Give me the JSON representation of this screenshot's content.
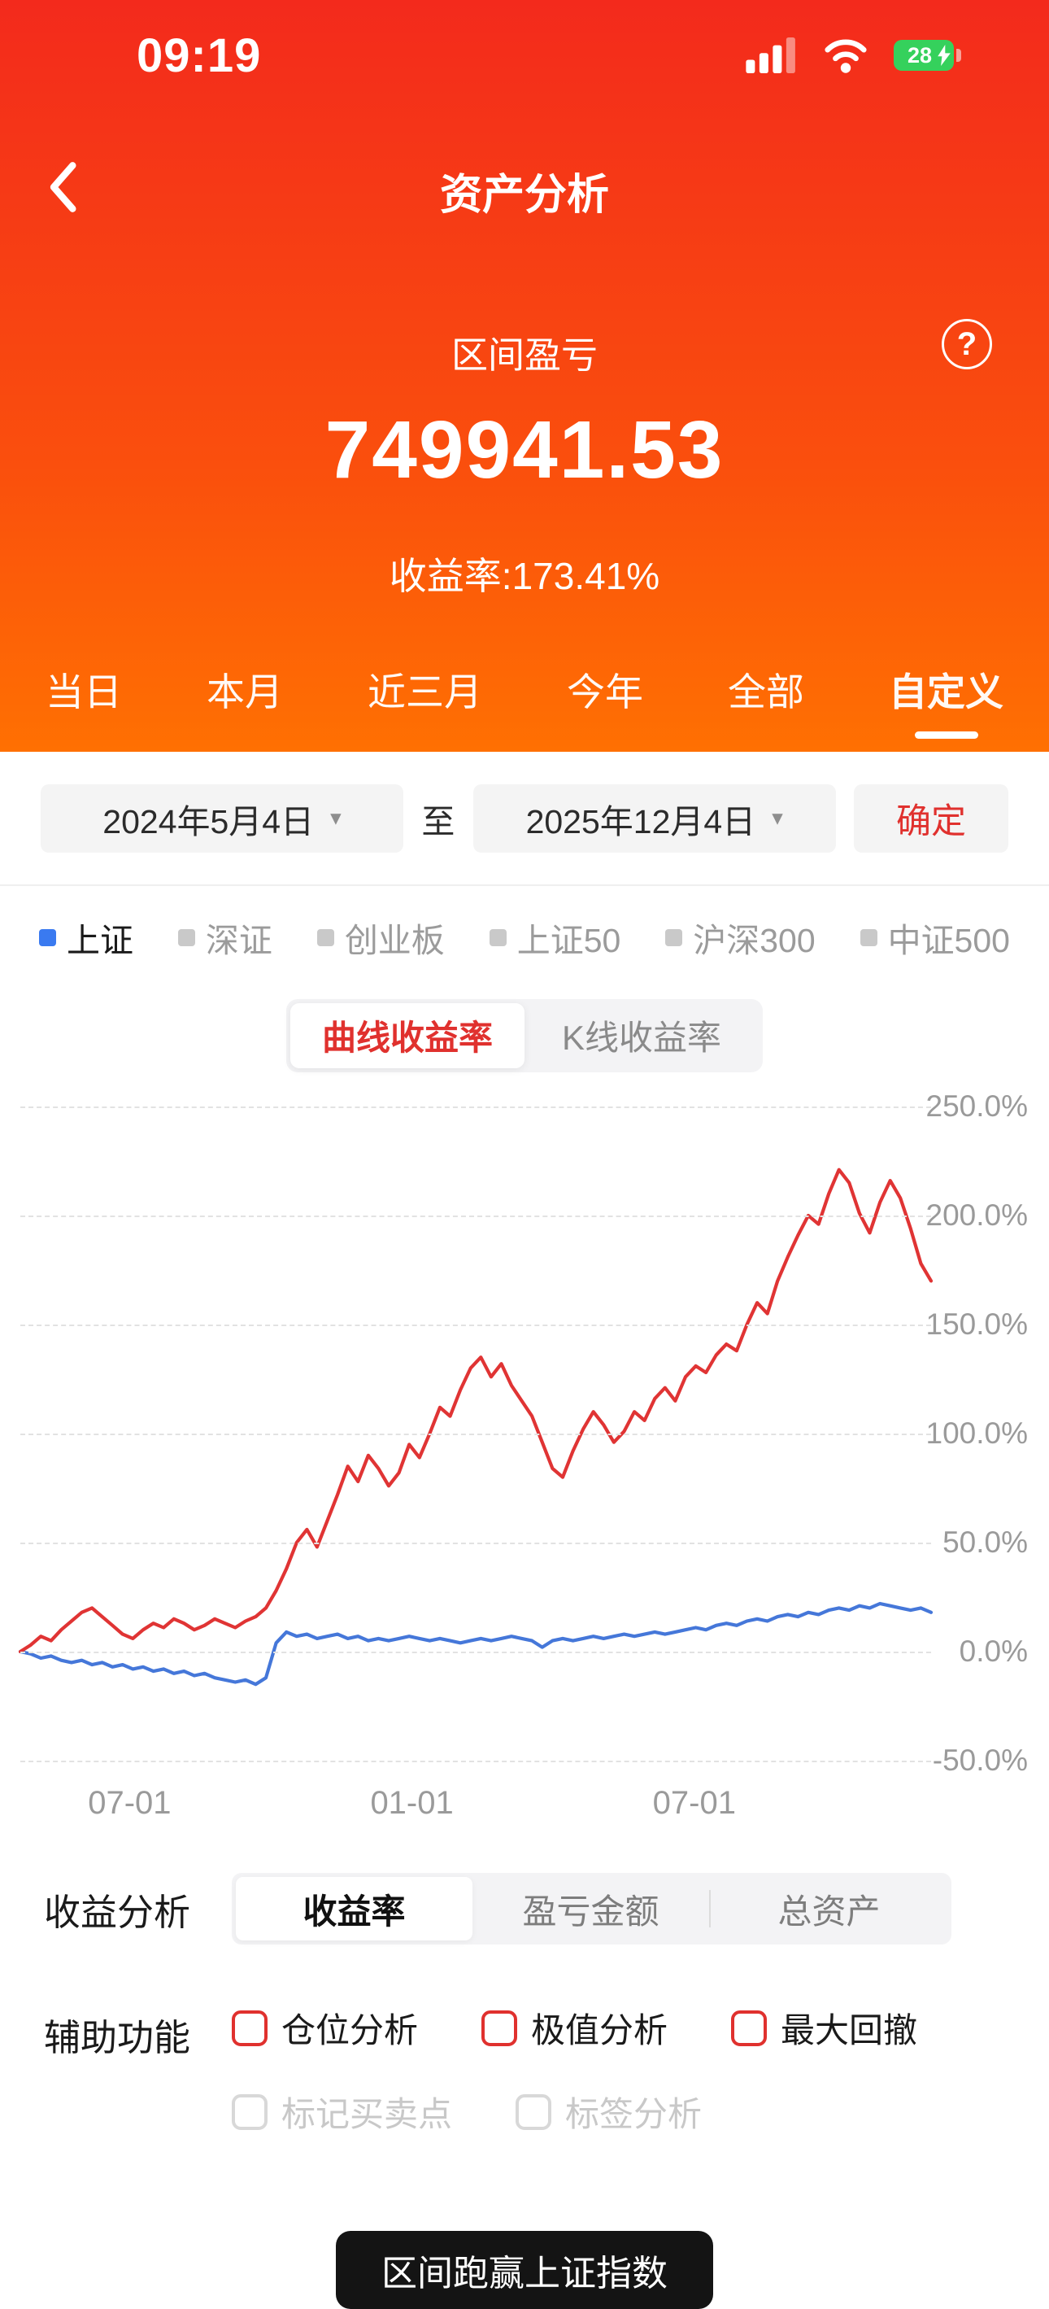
{
  "colors": {
    "header_top": "#f32a1c",
    "header_mid": "#fa4f0d",
    "header_bottom": "#ff7002",
    "accent_red": "#e0312e",
    "legend_blue": "#3a7af0",
    "battery_green": "#35d15c",
    "toast_bg": "#141414"
  },
  "icons": {
    "help": "?",
    "caret": "▾"
  },
  "status_bar": {
    "time": "09:19",
    "battery_percent": "28"
  },
  "header": {
    "title": "资产分析",
    "section_label": "区间盈亏",
    "amount": "749941.53",
    "return_label": "收益率:173.41%",
    "tabs": [
      {
        "label": "当日"
      },
      {
        "label": "本月"
      },
      {
        "label": "近三月"
      },
      {
        "label": "今年"
      },
      {
        "label": "全部"
      },
      {
        "label": "自定义",
        "active": true
      }
    ]
  },
  "date_filter": {
    "start": "2024年5月4日",
    "to_label": "至",
    "end": "2025年12月4日",
    "confirm_label": "确定"
  },
  "legend": [
    {
      "label": "上证",
      "active": true
    },
    {
      "label": "深证",
      "active": false
    },
    {
      "label": "创业板",
      "active": false
    },
    {
      "label": "上证50",
      "active": false
    },
    {
      "label": "沪深300",
      "active": false
    },
    {
      "label": "中证500",
      "active": false
    }
  ],
  "chart_toggle": {
    "options": [
      "曲线收益率",
      "K线收益率"
    ],
    "active_index": 0
  },
  "chart_data": {
    "type": "line",
    "title": "",
    "xlabel": "",
    "ylabel": "",
    "ylim": [
      -50,
      250
    ],
    "grid": "dashed-horizontal",
    "legend_position": "none",
    "y_ticks": [
      {
        "value": 250,
        "label": "250.0%"
      },
      {
        "value": 200,
        "label": "200.0%"
      },
      {
        "value": 150,
        "label": "150.0%"
      },
      {
        "value": 100,
        "label": "100.0%"
      },
      {
        "value": 50,
        "label": "50.0%"
      },
      {
        "value": 0,
        "label": "0.0%"
      },
      {
        "value": -50,
        "label": "-50.0%"
      }
    ],
    "x_ticks": [
      {
        "label": "07-01",
        "pos": 0.12
      },
      {
        "label": "01-01",
        "pos": 0.43
      },
      {
        "label": "07-01",
        "pos": 0.74
      }
    ],
    "series": [
      {
        "name": "上证",
        "key": "sse-index",
        "color": "#4577d9",
        "values": [
          0,
          -1,
          -3,
          -2,
          -4,
          -5,
          -4,
          -6,
          -5,
          -7,
          -6,
          -8,
          -7,
          -9,
          -8,
          -10,
          -9,
          -11,
          -10,
          -12,
          -13,
          -14,
          -13,
          -15,
          -12,
          4,
          9,
          7,
          8,
          6,
          7,
          8,
          6,
          7,
          5,
          6,
          5,
          6,
          7,
          6,
          5,
          6,
          5,
          4,
          5,
          6,
          5,
          6,
          7,
          6,
          5,
          2,
          5,
          6,
          5,
          6,
          7,
          6,
          7,
          8,
          7,
          8,
          9,
          8,
          9,
          10,
          11,
          10,
          12,
          13,
          12,
          14,
          15,
          14,
          16,
          17,
          16,
          18,
          17,
          19,
          20,
          19,
          21,
          20,
          22,
          21,
          20,
          19,
          20,
          18
        ]
      },
      {
        "name": "收益率",
        "key": "portfolio-return",
        "color": "#e03434",
        "values": [
          0,
          3,
          7,
          5,
          10,
          14,
          18,
          20,
          16,
          12,
          8,
          6,
          10,
          13,
          11,
          15,
          13,
          10,
          12,
          15,
          13,
          11,
          14,
          16,
          20,
          28,
          38,
          50,
          56,
          48,
          60,
          72,
          85,
          78,
          90,
          84,
          76,
          82,
          95,
          89,
          100,
          112,
          108,
          120,
          130,
          135,
          126,
          132,
          122,
          115,
          108,
          96,
          84,
          80,
          92,
          102,
          110,
          104,
          96,
          101,
          110,
          106,
          116,
          121,
          115,
          126,
          131,
          128,
          136,
          141,
          138,
          150,
          160,
          155,
          170,
          181,
          191,
          200,
          196,
          210,
          221,
          215,
          201,
          192,
          206,
          216,
          208,
          194,
          178,
          170
        ]
      }
    ]
  },
  "analysis": {
    "label": "收益分析",
    "tabs": [
      "收益率",
      "盈亏金额",
      "总资产"
    ],
    "active_index": 0
  },
  "aux": {
    "label": "辅助功能",
    "options": [
      {
        "label": "仓位分析",
        "enabled": true
      },
      {
        "label": "极值分析",
        "enabled": true
      },
      {
        "label": "最大回撤",
        "enabled": true
      },
      {
        "label": "标记买卖点",
        "enabled": false
      },
      {
        "label": "标签分析",
        "enabled": false
      }
    ]
  },
  "toast": {
    "text": "区间跑赢上证指数"
  }
}
